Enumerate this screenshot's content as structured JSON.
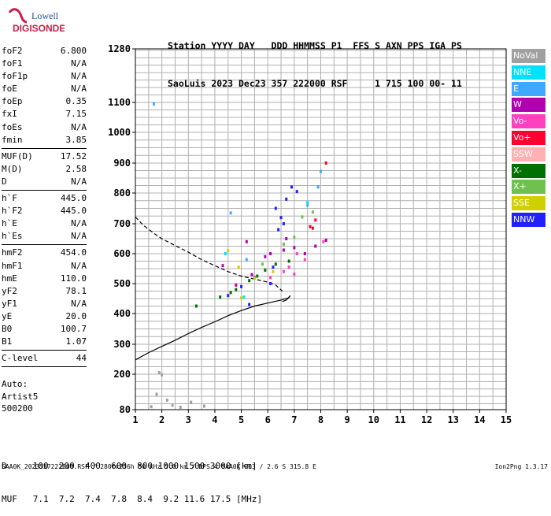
{
  "logo": {
    "line1": "Lowell",
    "line2": "DIGISONDE"
  },
  "header": {
    "line1": "Station YYYY DAY   DDD HHMMSS P1  FFS S AXN PPS IGA PS",
    "line2": "SaoLuis 2023 Dec23 357 222000 RSF     1 715 100 00- 11"
  },
  "params": {
    "group1": [
      {
        "label": "foF2",
        "value": "6.800"
      },
      {
        "label": "foF1",
        "value": "N/A"
      },
      {
        "label": "foF1p",
        "value": "N/A"
      },
      {
        "label": "foE",
        "value": "N/A"
      },
      {
        "label": "foEp",
        "value": "0.35"
      },
      {
        "label": "fxI",
        "value": "7.15"
      },
      {
        "label": "foEs",
        "value": "N/A"
      },
      {
        "label": "fmin",
        "value": "3.85"
      }
    ],
    "group2": [
      {
        "label": "MUF(D)",
        "value": "17.52"
      },
      {
        "label": "M(D)",
        "value": "2.58"
      },
      {
        "label": "D",
        "value": "N/A"
      }
    ],
    "group3": [
      {
        "label": "h`F",
        "value": "445.0"
      },
      {
        "label": "h`F2",
        "value": "445.0"
      },
      {
        "label": "h`E",
        "value": "N/A"
      },
      {
        "label": "h`Es",
        "value": "N/A"
      }
    ],
    "group4": [
      {
        "label": "hmF2",
        "value": "454.0"
      },
      {
        "label": "hmF1",
        "value": "N/A"
      },
      {
        "label": "hmE",
        "value": "110.0"
      },
      {
        "label": "yF2",
        "value": "78.1"
      },
      {
        "label": "yF1",
        "value": "N/A"
      },
      {
        "label": "yE",
        "value": "20.0"
      },
      {
        "label": "B0",
        "value": "100.7"
      },
      {
        "label": "B1",
        "value": "1.07"
      }
    ],
    "group5": [
      {
        "label": "C-level",
        "value": "44"
      }
    ]
  },
  "auto": {
    "line1": "Auto:",
    "line2": "Artist5",
    "line3": "500200"
  },
  "legend": [
    {
      "label": "NoVal",
      "color": "#a0a0a0"
    },
    {
      "label": "NNE",
      "color": "#00e0ff"
    },
    {
      "label": "E",
      "color": "#40a8ff"
    },
    {
      "label": "W",
      "color": "#b000b0"
    },
    {
      "label": "Vo-",
      "color": "#ff40c0"
    },
    {
      "label": "Vo+",
      "color": "#ff0030"
    },
    {
      "label": "SSW",
      "color": "#ffb0b0"
    },
    {
      "label": "X-",
      "color": "#007000"
    },
    {
      "label": "X+",
      "color": "#70c050"
    },
    {
      "label": "SSE",
      "color": "#d0d000"
    },
    {
      "label": "NNW",
      "color": "#2020ff"
    }
  ],
  "muf_table": {
    "line1": "D     100  200  400  600  800 1000 1500 3000 [km]",
    "line2": "MUF   7.1  7.2  7.4  7.8  8.4  9.2 11.6 17.5 [MHz]"
  },
  "footer": {
    "left": "SAA0K_2023357222000.RSF / 280fx256h 50 kHz 5.0 km / DPS-4 SAA0K 903 / 2.6 S 315.8 E",
    "right": "Ion2Png 1.3.17"
  },
  "chart_data": {
    "type": "scatter",
    "x_ticks": [
      "1",
      "2",
      "3",
      "4",
      "5",
      "6",
      "7",
      "8",
      "9",
      "10",
      "11",
      "12",
      "13",
      "14",
      "15"
    ],
    "y_ticks": [
      "80",
      "200",
      "300",
      "400",
      "500",
      "600",
      "700",
      "800",
      "900",
      "1000",
      "1100",
      "1280"
    ],
    "xlim": [
      1,
      15
    ],
    "ylim": [
      80,
      1280
    ],
    "grid": true,
    "series": [
      {
        "color": "#007000",
        "points": [
          [
            3.3,
            425
          ],
          [
            4.2,
            455
          ],
          [
            4.8,
            480
          ],
          [
            5.3,
            510
          ],
          [
            5.9,
            545
          ],
          [
            6.3,
            565
          ],
          [
            6.8,
            575
          ],
          [
            4.6,
            470
          ],
          [
            5.6,
            525
          ]
        ]
      },
      {
        "color": "#2020ff",
        "points": [
          [
            4.5,
            460
          ],
          [
            5.0,
            490
          ],
          [
            5.5,
            520
          ],
          [
            6.2,
            555
          ],
          [
            6.5,
            720
          ],
          [
            6.7,
            780
          ],
          [
            6.9,
            820
          ],
          [
            6.4,
            680
          ],
          [
            6.6,
            700
          ],
          [
            7.1,
            805
          ],
          [
            6.3,
            750
          ],
          [
            5.3,
            430
          ],
          [
            6.1,
            500
          ]
        ]
      },
      {
        "color": "#b000b0",
        "points": [
          [
            4.8,
            495
          ],
          [
            5.4,
            530
          ],
          [
            6.1,
            600
          ],
          [
            6.7,
            650
          ],
          [
            7.0,
            620
          ],
          [
            7.4,
            600
          ],
          [
            7.8,
            625
          ],
          [
            8.2,
            645
          ],
          [
            5.9,
            590
          ],
          [
            6.6,
            612
          ],
          [
            5.2,
            640
          ],
          [
            4.3,
            560
          ]
        ]
      },
      {
        "color": "#ff40c0",
        "points": [
          [
            6.1,
            520
          ],
          [
            6.8,
            555
          ],
          [
            7.1,
            600
          ],
          [
            7.4,
            580
          ],
          [
            8.1,
            640
          ],
          [
            6.6,
            540
          ],
          [
            7.0,
            532
          ]
        ]
      },
      {
        "color": "#ff0030",
        "points": [
          [
            7.6,
            690
          ],
          [
            7.8,
            712
          ],
          [
            8.2,
            900
          ],
          [
            7.7,
            685
          ]
        ]
      },
      {
        "color": "#40a8ff",
        "points": [
          [
            1.7,
            1095
          ],
          [
            7.9,
            820
          ],
          [
            7.5,
            760
          ],
          [
            8.0,
            872
          ],
          [
            5.2,
            580
          ],
          [
            4.6,
            735
          ]
        ]
      },
      {
        "color": "#d0d000",
        "points": [
          [
            4.5,
            610
          ],
          [
            5.5,
            518
          ],
          [
            5.0,
            452
          ],
          [
            4.9,
            555
          ],
          [
            6.2,
            540
          ]
        ]
      },
      {
        "color": "#70c050",
        "points": [
          [
            7.0,
            655
          ],
          [
            7.3,
            722
          ],
          [
            7.7,
            738
          ],
          [
            6.6,
            632
          ],
          [
            5.8,
            565
          ]
        ]
      },
      {
        "color": "#00e0ff",
        "points": [
          [
            5.1,
            455
          ],
          [
            4.4,
            600
          ],
          [
            7.5,
            770
          ]
        ]
      },
      {
        "color": "#a0a0a0",
        "points": [
          [
            1.6,
            90
          ],
          [
            2.2,
            112
          ],
          [
            2.7,
            88
          ],
          [
            3.1,
            105
          ],
          [
            3.6,
            92
          ],
          [
            1.9,
            205
          ],
          [
            2.0,
            198
          ],
          [
            1.8,
            132
          ],
          [
            2.4,
            95
          ]
        ]
      }
    ],
    "curves": [
      {
        "color": "#000000",
        "style": "solid",
        "points": [
          [
            1.0,
            248
          ],
          [
            1.5,
            272
          ],
          [
            2.0,
            293
          ],
          [
            2.5,
            313
          ],
          [
            3.0,
            335
          ],
          [
            3.5,
            355
          ],
          [
            4.0,
            373
          ],
          [
            4.5,
            393
          ],
          [
            5.0,
            410
          ],
          [
            5.5,
            425
          ],
          [
            6.0,
            435
          ],
          [
            6.5,
            445
          ],
          [
            6.8,
            453
          ],
          [
            6.85,
            460
          ],
          [
            6.7,
            445
          ],
          [
            6.55,
            440
          ]
        ]
      },
      {
        "color": "#000000",
        "style": "dashed",
        "points": [
          [
            1.0,
            722
          ],
          [
            1.3,
            695
          ],
          [
            1.7,
            668
          ],
          [
            2.0,
            650
          ],
          [
            2.5,
            627
          ],
          [
            3.0,
            605
          ],
          [
            3.5,
            580
          ],
          [
            4.0,
            560
          ],
          [
            4.5,
            540
          ],
          [
            5.0,
            525
          ],
          [
            5.5,
            515
          ],
          [
            6.0,
            505
          ],
          [
            6.3,
            495
          ],
          [
            6.55,
            475
          ]
        ]
      }
    ]
  }
}
